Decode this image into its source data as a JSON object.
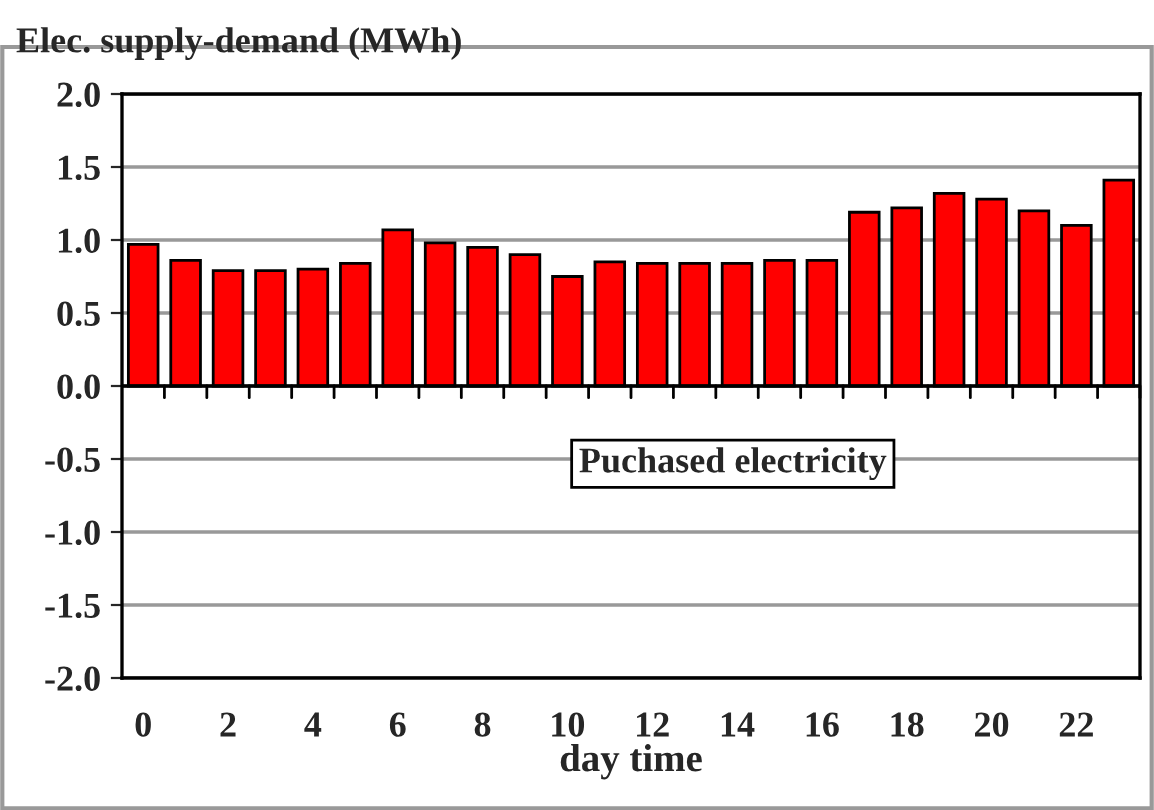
{
  "chart_data": {
    "type": "bar",
    "title": "Elec. supply-demand (MWh)",
    "xlabel": "day time",
    "categories": [
      "0",
      null,
      "2",
      null,
      "4",
      null,
      "6",
      null,
      "8",
      null,
      "10",
      null,
      "12",
      null,
      "14",
      null,
      "16",
      null,
      "18",
      null,
      "20",
      null,
      "22",
      null
    ],
    "series": [
      {
        "color": "#ff0000",
        "values": [
          0.97,
          0.86,
          0.79,
          0.79,
          0.8,
          0.84,
          1.07,
          0.98,
          0.95,
          0.9,
          0.75,
          0.85,
          0.84,
          0.84,
          0.84,
          0.86,
          0.86,
          1.19,
          1.22,
          1.32,
          1.28,
          1.2,
          1.1,
          1.41
        ]
      }
    ],
    "annotations": [
      "Puchased electricity"
    ],
    "ylim": [
      -2.0,
      2.0
    ],
    "yticks": [
      {
        "value": 2.0,
        "label": "2.0"
      },
      {
        "value": 1.5,
        "label": "1.5"
      },
      {
        "value": 1.0,
        "label": "1.0"
      },
      {
        "value": 0.5,
        "label": "0.5"
      },
      {
        "value": 0,
        "label": "0.0"
      },
      {
        "value": -0.5,
        "label": "-0.5"
      },
      {
        "value": -1.0,
        "label": "-1.0"
      },
      {
        "value": -1.5,
        "label": "-1.5"
      },
      {
        "value": -2.0,
        "label": "-2.0"
      }
    ],
    "grid": "y"
  }
}
